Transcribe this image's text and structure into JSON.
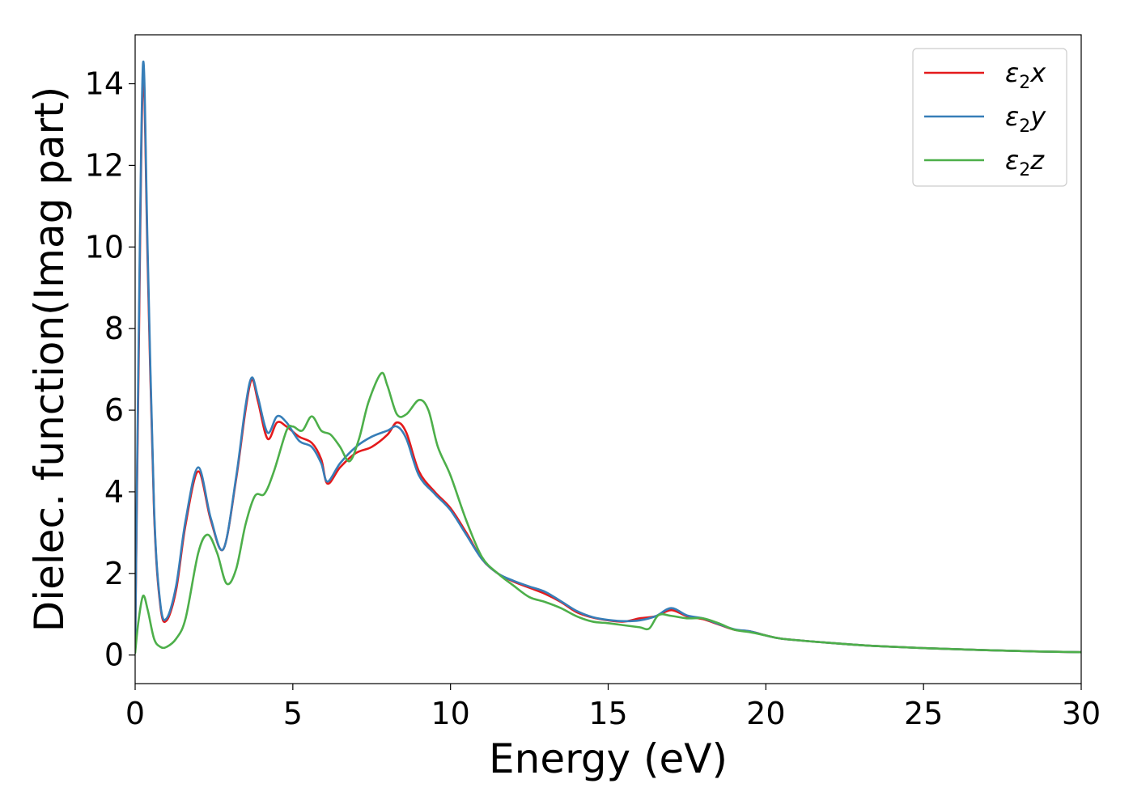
{
  "chart_data": {
    "type": "line",
    "title": "",
    "xlabel": "Energy (eV)",
    "ylabel": "Dielec. function(Imag part)",
    "xlim": [
      0,
      30
    ],
    "ylim": [
      -0.7,
      15.2
    ],
    "xticks": [
      0,
      5,
      10,
      15,
      20,
      25,
      30
    ],
    "yticks": [
      0,
      2,
      4,
      6,
      8,
      10,
      12,
      14
    ],
    "grid": false,
    "legend_position": "top-right",
    "series": [
      {
        "name": "ε₂x",
        "label_base": "ε",
        "label_sub": "2",
        "label_axis": "x",
        "color": "#e41a1c",
        "points": [
          [
            0,
            0.2
          ],
          [
            0.1,
            6.5
          ],
          [
            0.25,
            14.2
          ],
          [
            0.4,
            9.5
          ],
          [
            0.6,
            3.5
          ],
          [
            0.8,
            1.2
          ],
          [
            1.0,
            0.85
          ],
          [
            1.3,
            1.6
          ],
          [
            1.6,
            3.2
          ],
          [
            2.0,
            4.5
          ],
          [
            2.4,
            3.3
          ],
          [
            2.8,
            2.6
          ],
          [
            3.2,
            4.3
          ],
          [
            3.5,
            6.0
          ],
          [
            3.7,
            6.75
          ],
          [
            3.9,
            6.2
          ],
          [
            4.2,
            5.3
          ],
          [
            4.5,
            5.7
          ],
          [
            4.8,
            5.6
          ],
          [
            5.2,
            5.35
          ],
          [
            5.6,
            5.2
          ],
          [
            5.9,
            4.8
          ],
          [
            6.1,
            4.2
          ],
          [
            6.5,
            4.6
          ],
          [
            7.0,
            4.95
          ],
          [
            7.5,
            5.1
          ],
          [
            8.0,
            5.4
          ],
          [
            8.3,
            5.7
          ],
          [
            8.6,
            5.45
          ],
          [
            9.0,
            4.5
          ],
          [
            9.5,
            4.0
          ],
          [
            10.0,
            3.6
          ],
          [
            10.5,
            3.0
          ],
          [
            11.0,
            2.35
          ],
          [
            11.5,
            2.0
          ],
          [
            12.0,
            1.8
          ],
          [
            12.5,
            1.65
          ],
          [
            13.0,
            1.5
          ],
          [
            13.5,
            1.3
          ],
          [
            14.0,
            1.05
          ],
          [
            14.5,
            0.92
          ],
          [
            15.0,
            0.85
          ],
          [
            15.5,
            0.82
          ],
          [
            16.0,
            0.9
          ],
          [
            16.5,
            0.95
          ],
          [
            17.0,
            1.1
          ],
          [
            17.5,
            0.95
          ],
          [
            18.0,
            0.88
          ],
          [
            18.5,
            0.75
          ],
          [
            19.0,
            0.62
          ],
          [
            19.5,
            0.58
          ],
          [
            20.0,
            0.48
          ],
          [
            20.5,
            0.4
          ],
          [
            21.5,
            0.33
          ],
          [
            22.5,
            0.27
          ],
          [
            23.5,
            0.22
          ],
          [
            25.0,
            0.17
          ],
          [
            27.0,
            0.12
          ],
          [
            28.5,
            0.09
          ],
          [
            30.0,
            0.07
          ]
        ]
      },
      {
        "name": "ε₂y",
        "label_base": "ε",
        "label_sub": "2",
        "label_axis": "y",
        "color": "#377eb8",
        "points": [
          [
            0,
            0.2
          ],
          [
            0.1,
            7.0
          ],
          [
            0.25,
            14.5
          ],
          [
            0.4,
            9.8
          ],
          [
            0.6,
            3.6
          ],
          [
            0.8,
            1.25
          ],
          [
            1.0,
            0.9
          ],
          [
            1.3,
            1.7
          ],
          [
            1.6,
            3.3
          ],
          [
            2.0,
            4.6
          ],
          [
            2.4,
            3.35
          ],
          [
            2.8,
            2.6
          ],
          [
            3.2,
            4.35
          ],
          [
            3.5,
            6.1
          ],
          [
            3.7,
            6.8
          ],
          [
            3.9,
            6.3
          ],
          [
            4.2,
            5.45
          ],
          [
            4.5,
            5.85
          ],
          [
            4.8,
            5.7
          ],
          [
            5.2,
            5.25
          ],
          [
            5.6,
            5.1
          ],
          [
            5.9,
            4.7
          ],
          [
            6.1,
            4.25
          ],
          [
            6.5,
            4.7
          ],
          [
            7.0,
            5.1
          ],
          [
            7.5,
            5.35
          ],
          [
            8.0,
            5.5
          ],
          [
            8.3,
            5.6
          ],
          [
            8.6,
            5.3
          ],
          [
            9.0,
            4.4
          ],
          [
            9.5,
            3.95
          ],
          [
            10.0,
            3.55
          ],
          [
            10.5,
            2.95
          ],
          [
            11.0,
            2.35
          ],
          [
            11.5,
            2.0
          ],
          [
            12.0,
            1.82
          ],
          [
            12.5,
            1.68
          ],
          [
            13.0,
            1.55
          ],
          [
            13.5,
            1.32
          ],
          [
            14.0,
            1.08
          ],
          [
            14.5,
            0.93
          ],
          [
            15.0,
            0.86
          ],
          [
            15.5,
            0.83
          ],
          [
            16.0,
            0.85
          ],
          [
            16.5,
            0.95
          ],
          [
            17.0,
            1.15
          ],
          [
            17.5,
            0.97
          ],
          [
            18.0,
            0.9
          ],
          [
            18.5,
            0.76
          ],
          [
            19.0,
            0.63
          ],
          [
            19.5,
            0.58
          ],
          [
            20.0,
            0.48
          ],
          [
            20.5,
            0.4
          ],
          [
            21.5,
            0.33
          ],
          [
            22.5,
            0.27
          ],
          [
            23.5,
            0.22
          ],
          [
            25.0,
            0.17
          ],
          [
            27.0,
            0.12
          ],
          [
            28.5,
            0.09
          ],
          [
            30.0,
            0.07
          ]
        ]
      },
      {
        "name": "ε₂z",
        "label_base": "ε",
        "label_sub": "2",
        "label_axis": "z",
        "color": "#4daf4a",
        "points": [
          [
            0,
            0.05
          ],
          [
            0.1,
            0.8
          ],
          [
            0.25,
            1.45
          ],
          [
            0.4,
            1.1
          ],
          [
            0.6,
            0.4
          ],
          [
            0.8,
            0.2
          ],
          [
            1.0,
            0.2
          ],
          [
            1.3,
            0.4
          ],
          [
            1.6,
            0.9
          ],
          [
            2.0,
            2.5
          ],
          [
            2.3,
            2.95
          ],
          [
            2.6,
            2.5
          ],
          [
            2.9,
            1.75
          ],
          [
            3.2,
            2.1
          ],
          [
            3.5,
            3.2
          ],
          [
            3.8,
            3.9
          ],
          [
            4.1,
            3.95
          ],
          [
            4.4,
            4.5
          ],
          [
            4.8,
            5.5
          ],
          [
            5.0,
            5.6
          ],
          [
            5.3,
            5.5
          ],
          [
            5.6,
            5.85
          ],
          [
            5.9,
            5.5
          ],
          [
            6.2,
            5.4
          ],
          [
            6.5,
            5.1
          ],
          [
            6.8,
            4.75
          ],
          [
            7.1,
            5.3
          ],
          [
            7.4,
            6.2
          ],
          [
            7.8,
            6.9
          ],
          [
            8.0,
            6.6
          ],
          [
            8.3,
            5.9
          ],
          [
            8.6,
            5.9
          ],
          [
            9.0,
            6.25
          ],
          [
            9.3,
            6.0
          ],
          [
            9.6,
            5.1
          ],
          [
            10.0,
            4.4
          ],
          [
            10.5,
            3.3
          ],
          [
            11.0,
            2.4
          ],
          [
            11.5,
            2.0
          ],
          [
            12.0,
            1.7
          ],
          [
            12.5,
            1.42
          ],
          [
            13.0,
            1.3
          ],
          [
            13.5,
            1.15
          ],
          [
            14.0,
            0.95
          ],
          [
            14.5,
            0.82
          ],
          [
            15.0,
            0.78
          ],
          [
            15.5,
            0.73
          ],
          [
            16.0,
            0.68
          ],
          [
            16.3,
            0.65
          ],
          [
            16.6,
            0.98
          ],
          [
            17.0,
            0.96
          ],
          [
            17.5,
            0.9
          ],
          [
            18.0,
            0.9
          ],
          [
            18.5,
            0.78
          ],
          [
            19.0,
            0.62
          ],
          [
            19.5,
            0.56
          ],
          [
            20.0,
            0.48
          ],
          [
            20.5,
            0.4
          ],
          [
            21.5,
            0.33
          ],
          [
            22.5,
            0.27
          ],
          [
            23.5,
            0.22
          ],
          [
            25.0,
            0.17
          ],
          [
            27.0,
            0.12
          ],
          [
            28.5,
            0.09
          ],
          [
            30.0,
            0.07
          ]
        ]
      }
    ]
  }
}
